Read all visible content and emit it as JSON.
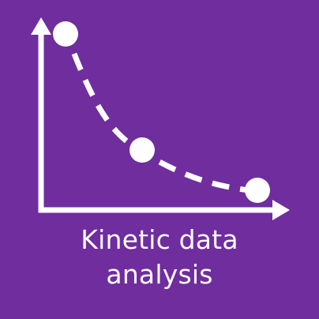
{
  "colors": {
    "background": "#6f2d9e",
    "foreground": "#ffffff"
  },
  "icon": "kinetic-decay-curve-icon",
  "caption": {
    "line1": "Kinetic data",
    "line2": "analysis"
  }
}
